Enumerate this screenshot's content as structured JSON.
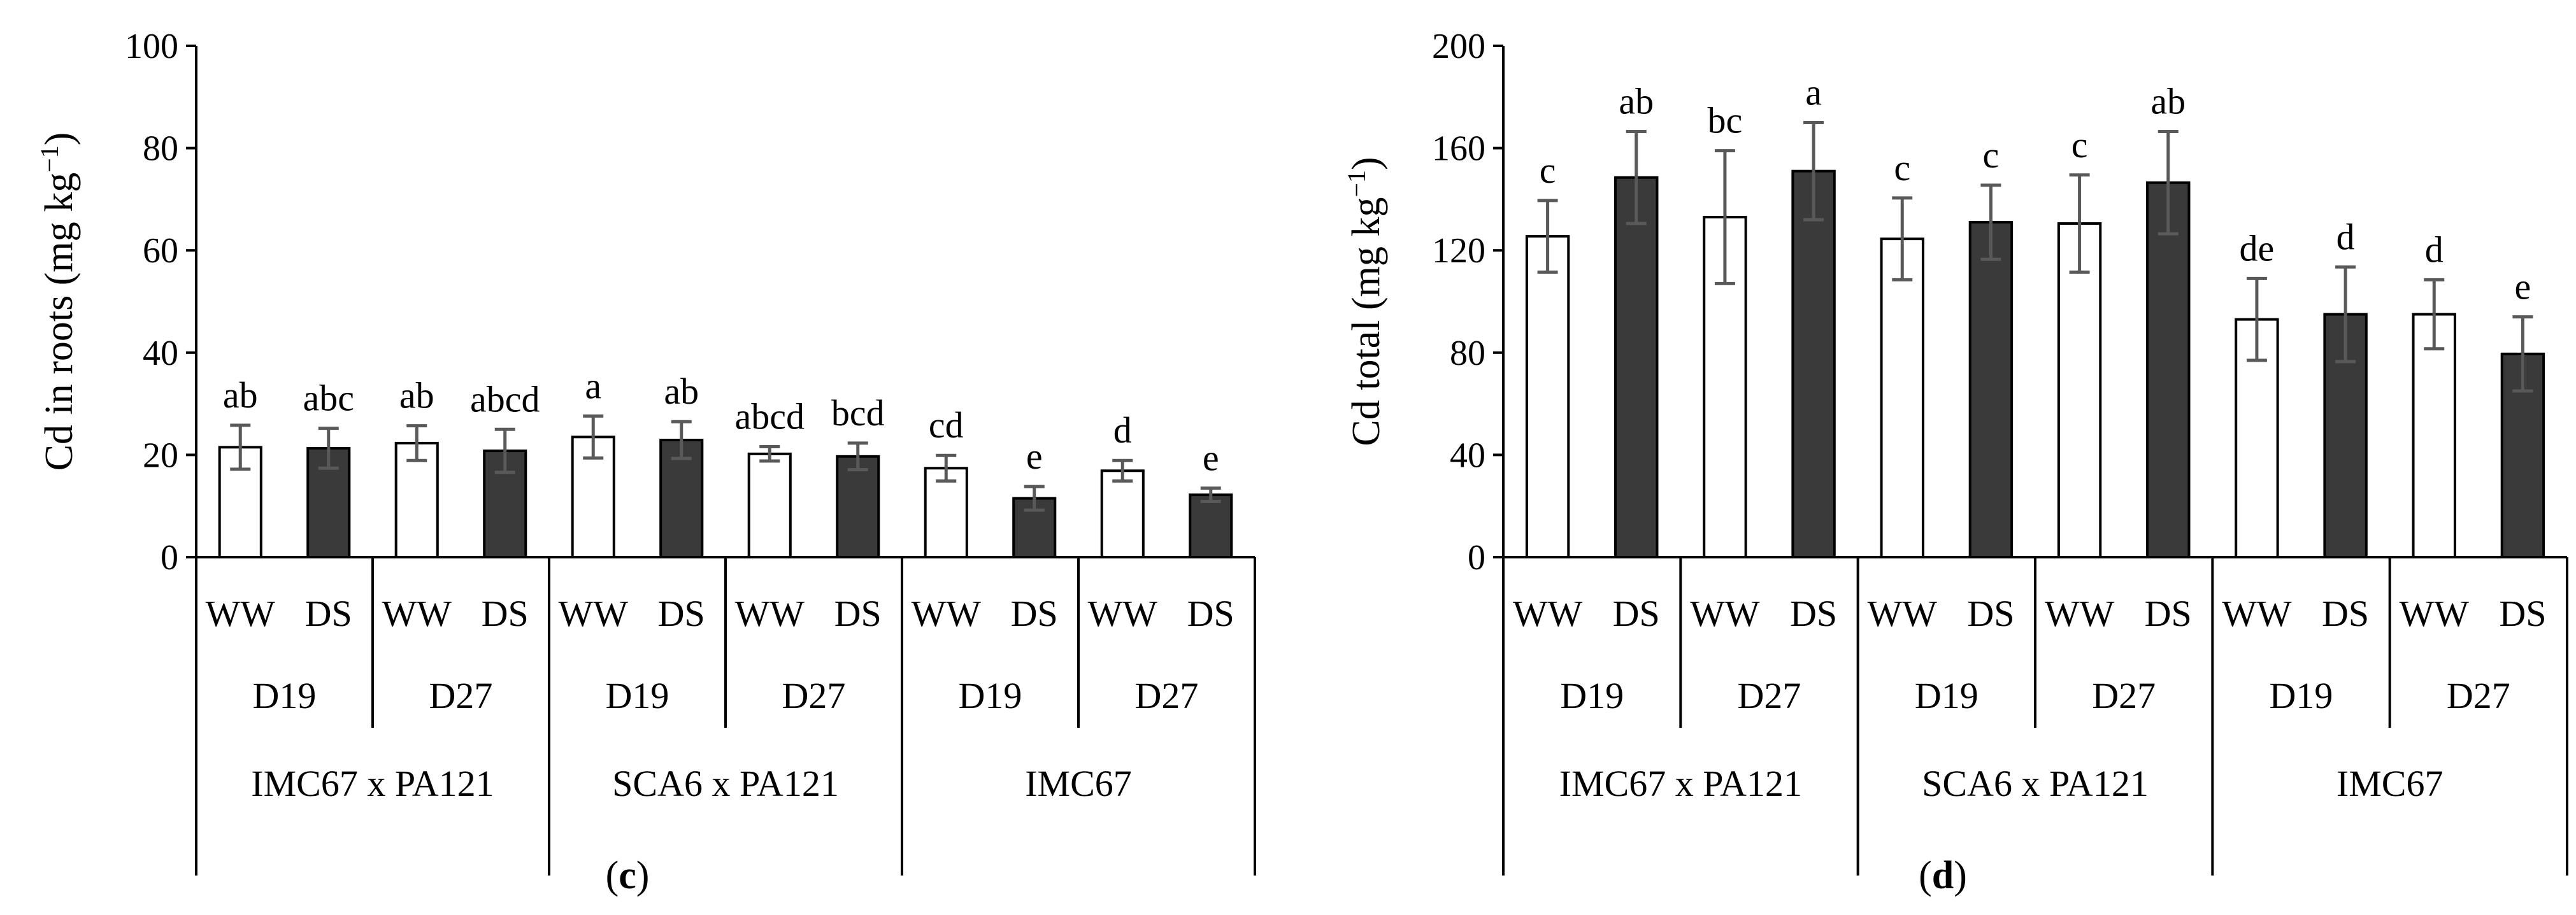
{
  "chart_data": [
    {
      "type": "bar",
      "caption": "c",
      "ylabel_main": "Cd in roots (mg kg",
      "ylabel_exp": "−1",
      "ylabel_close": ")",
      "ylim": [
        0,
        100
      ],
      "yticks": [
        "0",
        "20",
        "40",
        "60",
        "80",
        "100"
      ],
      "ytick_values": [
        0,
        20,
        40,
        60,
        80,
        100
      ],
      "values": [
        21.5,
        21.3,
        22.3,
        20.8,
        23.5,
        22.9,
        20.2,
        19.7,
        17.4,
        11.5,
        16.9,
        12.2
      ],
      "errors": [
        4.3,
        3.9,
        3.4,
        4.2,
        4.1,
        3.6,
        1.4,
        2.6,
        2.5,
        2.3,
        2.0,
        1.3
      ],
      "letters": [
        "ab",
        "abc",
        "ab",
        "abcd",
        "a",
        "ab",
        "abcd",
        "bcd",
        "cd",
        "e",
        "d",
        "e"
      ],
      "treatments": [
        "WW",
        "DS",
        "WW",
        "DS",
        "WW",
        "DS",
        "WW",
        "DS",
        "WW",
        "DS",
        "WW",
        "DS"
      ],
      "days": [
        "D19",
        "D27",
        "D19",
        "D27",
        "D19",
        "D27"
      ],
      "genotypes": [
        "IMC67 x PA121",
        "SCA6 x PA121",
        "IMC67"
      ],
      "series_colors": {
        "WW": "#ffffff",
        "DS": "#3a3a3a"
      }
    },
    {
      "type": "bar",
      "caption": "d",
      "ylabel_main": "Cd total (mg kg",
      "ylabel_exp": "−1",
      "ylabel_close": ")",
      "ylim": [
        0,
        200
      ],
      "yticks": [
        "0",
        "40",
        "80",
        "120",
        "160",
        "200"
      ],
      "ytick_values": [
        0,
        40,
        80,
        120,
        160,
        200
      ],
      "values": [
        125.5,
        148.5,
        133,
        151,
        124.5,
        131,
        130.5,
        146.5,
        93,
        95,
        95,
        79.5
      ],
      "errors": [
        14,
        18,
        26,
        19,
        16,
        14.5,
        19,
        20,
        16,
        18.5,
        13.5,
        14.5
      ],
      "letters": [
        "c",
        "ab",
        "bc",
        "a",
        "c",
        "c",
        "c",
        "ab",
        "de",
        "d",
        "d",
        "e"
      ],
      "treatments": [
        "WW",
        "DS",
        "WW",
        "DS",
        "WW",
        "DS",
        "WW",
        "DS",
        "WW",
        "DS",
        "WW",
        "DS"
      ],
      "days": [
        "D19",
        "D27",
        "D19",
        "D27",
        "D19",
        "D27"
      ],
      "genotypes": [
        "IMC67 x PA121",
        "SCA6 x PA121",
        "IMC67"
      ],
      "series_colors": {
        "WW": "#ffffff",
        "DS": "#3a3a3a"
      }
    }
  ]
}
